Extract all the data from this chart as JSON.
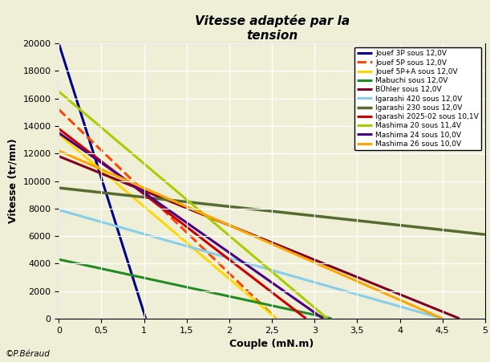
{
  "title": "Vitesse adaptée par la\ntension",
  "xlabel": "Couple (mN.m)",
  "ylabel": "Vitesse (tr/mn)",
  "copyright": "©P.Béraud",
  "xlim": [
    0,
    5
  ],
  "ylim": [
    0,
    20000
  ],
  "xticks": [
    0,
    0.5,
    1,
    1.5,
    2,
    2.5,
    3,
    3.5,
    4,
    4.5,
    5
  ],
  "yticks": [
    0,
    2000,
    4000,
    6000,
    8000,
    10000,
    12000,
    14000,
    16000,
    18000,
    20000
  ],
  "bg_color": "#EFEFD8",
  "grid_color": "#FFFFFF",
  "lines": [
    {
      "label": "Jouef 3P sous 12,0V",
      "color": "#00008B",
      "lw": 2.2,
      "ls": "-",
      "v0": 20000,
      "t_stall": 1.02
    },
    {
      "label": "Jouef 5P sous 12,0V",
      "color": "#FF4500",
      "lw": 2.2,
      "ls": "--",
      "v0": 15200,
      "t_stall": 2.55
    },
    {
      "label": "Jouef 5P+A sous 12,0V",
      "color": "#FFD700",
      "lw": 2.2,
      "ls": "-",
      "v0": 13400,
      "t_stall": 2.55
    },
    {
      "label": "Mabuchi sous 12,0V",
      "color": "#228B22",
      "lw": 2.2,
      "ls": "-",
      "v0": 4300,
      "t_stall": 3.2
    },
    {
      "label": "BÜhler sous 12,0V",
      "color": "#800020",
      "lw": 2.2,
      "ls": "-",
      "v0": 11800,
      "t_stall": 4.7
    },
    {
      "label": "Igarashi 420 sous 12,0V",
      "color": "#87CEEB",
      "lw": 2.2,
      "ls": "-",
      "v0": 7900,
      "t_stall": 4.5
    },
    {
      "label": "Igarashi 230 sous 12,0V",
      "color": "#556B2F",
      "lw": 2.5,
      "ls": "-",
      "v0": 9500,
      "t_stall": 14.0
    },
    {
      "label": "Igarashi 2025-02 sous 10,1V",
      "color": "#CC0000",
      "lw": 2.2,
      "ls": "-",
      "v0": 13800,
      "t_stall": 2.9
    },
    {
      "label": "Mashima 20 sous 11,4V",
      "color": "#AACC00",
      "lw": 2.2,
      "ls": "-",
      "v0": 16500,
      "t_stall": 3.15
    },
    {
      "label": "Mashima 24 sous 10,0V",
      "color": "#4B0082",
      "lw": 2.2,
      "ls": "-",
      "v0": 13500,
      "t_stall": 3.1
    },
    {
      "label": "Mashima 26 sous 10,0V",
      "color": "#FFA500",
      "lw": 2.2,
      "ls": "-",
      "v0": 12200,
      "t_stall": 4.5
    }
  ]
}
